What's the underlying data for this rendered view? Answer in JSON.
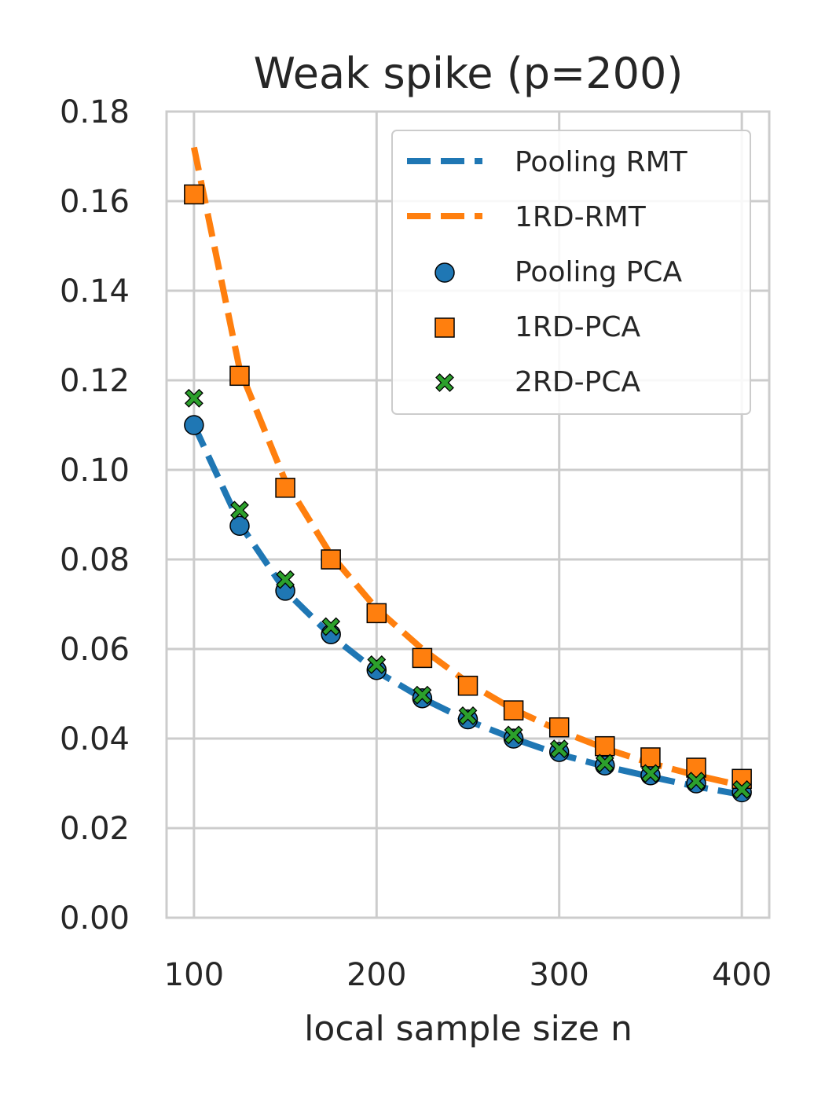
{
  "chart_data": {
    "type": "line",
    "title": "Weak spike (p=200)",
    "xlabel": "local sample size n",
    "ylabel": "",
    "xlim": [
      85,
      415
    ],
    "ylim": [
      0.0,
      0.18
    ],
    "xticks": [
      100,
      200,
      300,
      400
    ],
    "xtick_labels": [
      "100",
      "200",
      "300",
      "400"
    ],
    "yticks": [
      0.0,
      0.02,
      0.04,
      0.06,
      0.08,
      0.1,
      0.12,
      0.14,
      0.16,
      0.18
    ],
    "ytick_labels": [
      "0.00",
      "0.02",
      "0.04",
      "0.06",
      "0.08",
      "0.10",
      "0.12",
      "0.14",
      "0.16",
      "0.18"
    ],
    "grid": true,
    "legend_position": "top-right",
    "x": [
      100,
      125,
      150,
      175,
      200,
      225,
      250,
      275,
      300,
      325,
      350,
      375,
      400
    ],
    "series": [
      {
        "name": "Pooling RMT",
        "kind": "dashed-line",
        "color": "#1f77b4",
        "values": [
          0.11,
          0.088,
          0.073,
          0.063,
          0.055,
          0.049,
          0.044,
          0.04,
          0.0365,
          0.0338,
          0.0315,
          0.0293,
          0.0275
        ]
      },
      {
        "name": "1RD-RMT",
        "kind": "dashed-line",
        "color": "#ff7f0e",
        "values": [
          0.172,
          0.1225,
          0.0975,
          0.081,
          0.069,
          0.06,
          0.0525,
          0.0465,
          0.0418,
          0.0378,
          0.0345,
          0.0318,
          0.0295
        ]
      },
      {
        "name": "Pooling PCA",
        "kind": "marker-circle",
        "color": "#1f77b4",
        "values": [
          0.11,
          0.0875,
          0.073,
          0.0633,
          0.0553,
          0.049,
          0.0443,
          0.04,
          0.037,
          0.034,
          0.0318,
          0.03,
          0.028
        ]
      },
      {
        "name": "1RD-PCA",
        "kind": "marker-square",
        "color": "#ff7f0e",
        "values": [
          0.1615,
          0.121,
          0.096,
          0.08,
          0.068,
          0.058,
          0.0518,
          0.0463,
          0.0425,
          0.0383,
          0.0358,
          0.0335,
          0.031
        ]
      },
      {
        "name": "2RD-PCA",
        "kind": "marker-x",
        "color": "#2ca02c",
        "values": [
          0.116,
          0.091,
          0.0755,
          0.065,
          0.0565,
          0.0497,
          0.0451,
          0.0408,
          0.0377,
          0.0345,
          0.0322,
          0.0305,
          0.0286
        ]
      }
    ]
  }
}
